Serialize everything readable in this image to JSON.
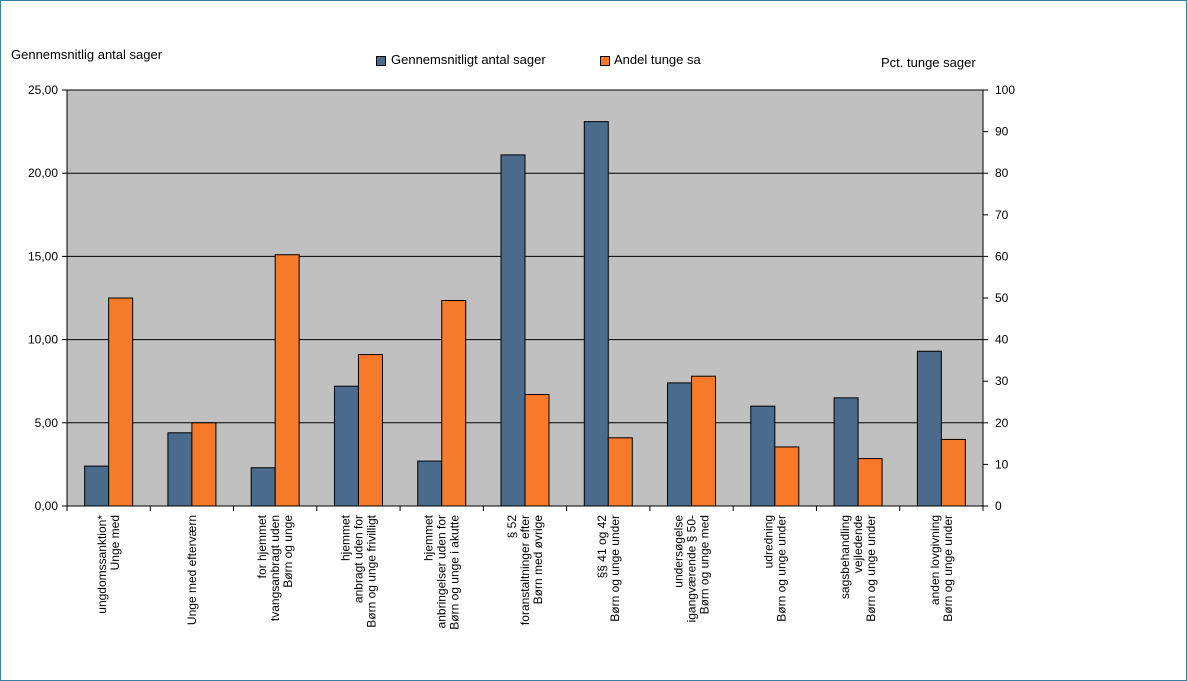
{
  "chart_data": {
    "type": "bar",
    "y_left_label": "Gennemsnitlig antal sager",
    "y_right_label": "Pct. tunge sager",
    "ylim_left": [
      0,
      25
    ],
    "ylim_right": [
      0,
      100
    ],
    "y_left_ticks": [
      "0,00",
      "5,00",
      "10,00",
      "15,00",
      "20,00",
      "25,00"
    ],
    "y_right_ticks": [
      "0",
      "10",
      "20",
      "30",
      "40",
      "50",
      "60",
      "70",
      "80",
      "90",
      "100"
    ],
    "grid": true,
    "legend_position": "top-center",
    "categories": [
      [
        "Unge med",
        "ungdomssanktion*"
      ],
      [
        "Unge med efterværn"
      ],
      [
        "Børn og unge",
        "tvangsanbragt uden",
        "for hjemmet"
      ],
      [
        "Børn og unge frivilligt",
        "anbragt uden for",
        "hjemmet"
      ],
      [
        "Børn og unge i akutte",
        "anbringelser uden for",
        "hjemmet"
      ],
      [
        "Børn med øvrige",
        "foranstaltninger efter",
        "§ 52"
      ],
      [
        "Børn og unge under",
        "§§ 41 og 42"
      ],
      [
        "Børn og unge med",
        "igangværende § 50-",
        "undersøgelse"
      ],
      [
        "Børn og unge under",
        "udredning"
      ],
      [
        "Børn og unge under",
        "vejledende",
        "sagsbehandling"
      ],
      [
        "Børn og unge under",
        "anden lovgivning"
      ]
    ],
    "series": [
      {
        "name": "Gennemsnitligt antal sager",
        "axis": "left",
        "color": "#4a6b8c",
        "values": [
          2.4,
          4.4,
          2.3,
          7.2,
          2.7,
          21.1,
          23.1,
          7.4,
          6.0,
          6.5,
          9.3
        ]
      },
      {
        "name": "Andel tunge sa",
        "axis": "right",
        "color": "#f7792a",
        "values": [
          50,
          20,
          60.4,
          36.4,
          49.4,
          26.8,
          16.4,
          31.2,
          14.2,
          11.4,
          16.0
        ]
      }
    ]
  }
}
